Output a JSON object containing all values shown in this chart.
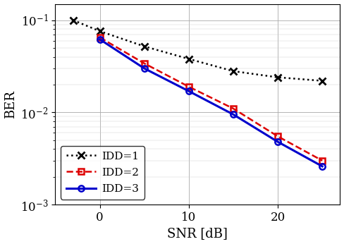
{
  "title": "",
  "xlabel": "SNR [dB]",
  "ylabel": "BER",
  "xlim": [
    -5,
    27
  ],
  "ylim_log": [
    0.001,
    0.15
  ],
  "snr_idd1": [
    -3,
    0,
    5,
    10,
    15,
    20,
    25
  ],
  "ber_idd1": [
    0.1,
    0.076,
    0.052,
    0.038,
    0.028,
    0.024,
    0.022
  ],
  "snr_idd2": [
    0,
    5,
    10,
    15,
    20,
    25
  ],
  "ber_idd2": [
    0.065,
    0.034,
    0.019,
    0.011,
    0.0055,
    0.003
  ],
  "snr_idd3": [
    0,
    5,
    10,
    15,
    20,
    25
  ],
  "ber_idd3": [
    0.062,
    0.03,
    0.017,
    0.0095,
    0.0048,
    0.0026
  ],
  "color_idd1": "#000000",
  "color_idd2": "#dd0000",
  "color_idd3": "#0000cc",
  "legend_labels": [
    "IDD=1",
    "IDD=2",
    "IDD=3"
  ],
  "xticks": [
    0,
    10,
    20
  ],
  "xticklabels": [
    "0",
    "10",
    "20"
  ],
  "fig_width": 4.88,
  "fig_height": 3.46,
  "dpi": 100
}
